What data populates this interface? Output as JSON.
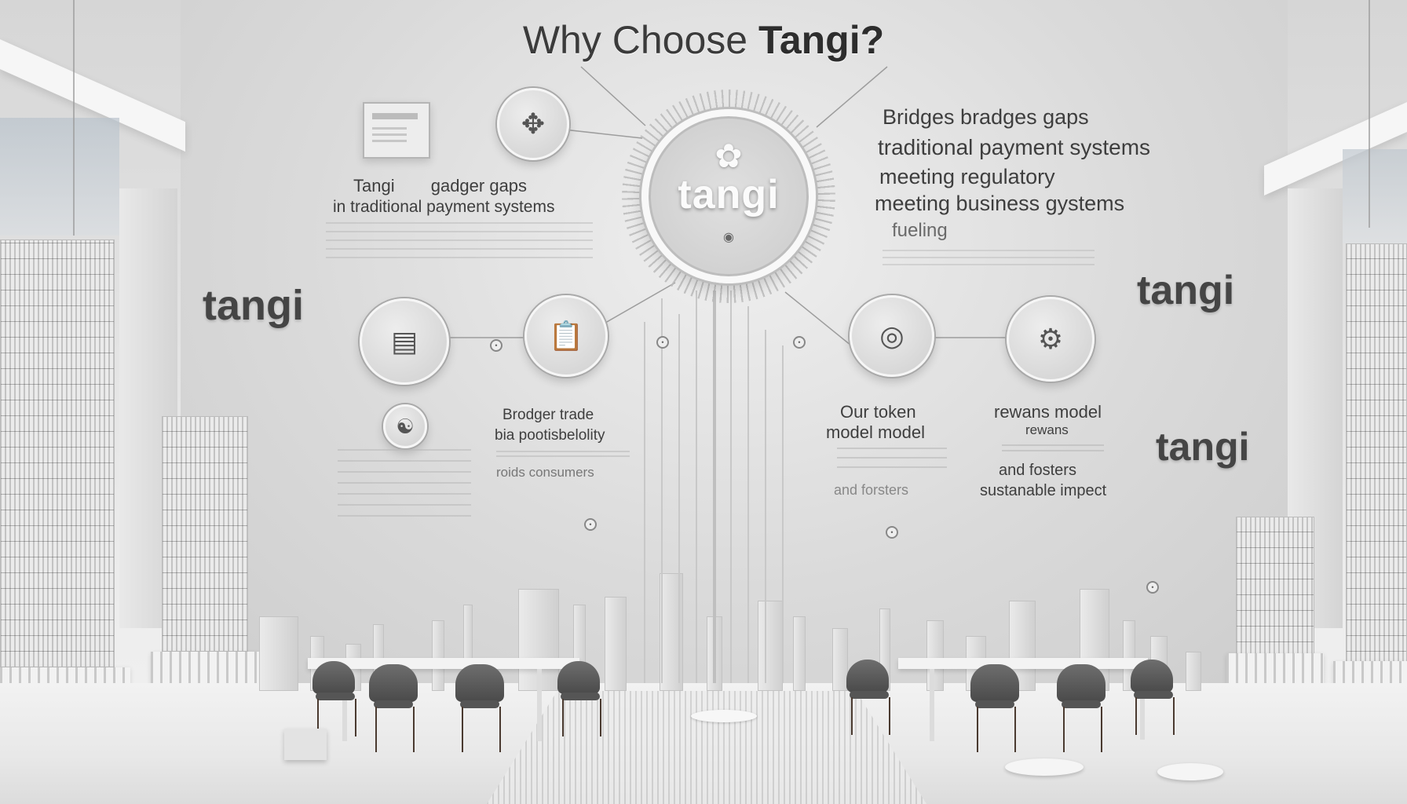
{
  "title": {
    "pre": "Why Choose ",
    "brand": "Tangi?"
  },
  "hub": {
    "word": "tangi",
    "glyph": "✿",
    "pin": "◉"
  },
  "brand_left": "tangi",
  "brand_right_top": "tangi",
  "brand_right_bottom": "tangi",
  "upper_left_text": {
    "line1_a": "Tangi",
    "line1_b": "gadger gaps",
    "line2": "in traditional payment systems"
  },
  "upper_right_text": {
    "line1": "Bridges bradges gaps",
    "line2": "traditional payment systems",
    "line3": "meeting regulatory",
    "line4": "meeting  business gystems",
    "line5": "fueling"
  },
  "mid_left_text": {
    "line1": "Brodger trade",
    "line2": "bia pootisbelolity",
    "line3": "roids consumers"
  },
  "mid_right_text": {
    "line1": "Our token",
    "line2": "model model",
    "line3": "and forsters"
  },
  "far_right_text": {
    "line1": "rewans model",
    "line2": "rewans",
    "line3": "and fosters",
    "line4": "sustanable impect"
  },
  "icons": {
    "doc_card": "document-card-icon",
    "compass": "compass-icon",
    "chat_window": "chat-window-icon",
    "clipboard": "clipboard-icon",
    "swirl": "swirl-icon",
    "token_coin": "token-coin-icon",
    "gear_network": "gear-network-icon"
  }
}
